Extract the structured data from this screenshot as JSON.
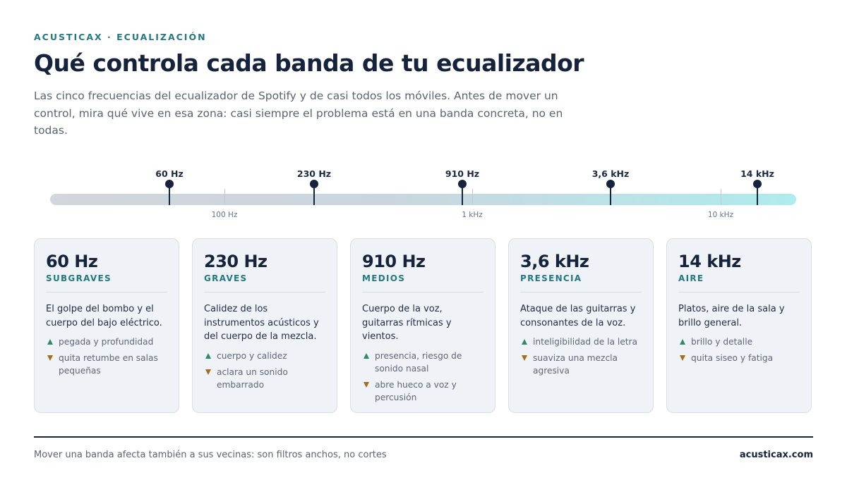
{
  "header": {
    "eyebrow": "ACUSTICAX · ECUALIZACIÓN",
    "title": "Qué controla cada banda de tu ecualizador",
    "lede": "Las cinco frecuencias del ecualizador de Spotify y de casi todos los móviles. Antes de mover un control, mira qué vive en esa zona: casi siempre el problema está en una banda concreta, no en todas."
  },
  "scale": {
    "markers": [
      "60 Hz",
      "230 Hz",
      "910 Hz",
      "3,6 kHz",
      "14 kHz"
    ],
    "decades": [
      "100 Hz",
      "1 kHz",
      "10 kHz"
    ]
  },
  "cards": [
    {
      "freq": "60 Hz",
      "band": "SUBGRAVES",
      "desc": "El golpe del bombo y el cuerpo del bajo eléctrico.",
      "up": "pegada y profundidad",
      "down": "quita retumbe en salas pequeñas"
    },
    {
      "freq": "230 Hz",
      "band": "GRAVES",
      "desc": "Calidez de los instrumentos acústicos y del cuerpo de la mezcla.",
      "up": "cuerpo y calidez",
      "down": "aclara un sonido embarrado"
    },
    {
      "freq": "910 Hz",
      "band": "MEDIOS",
      "desc": "Cuerpo de la voz, guitarras rítmicas y vientos.",
      "up": "presencia, riesgo de sonido nasal",
      "down": "abre hueco a voz y percusión"
    },
    {
      "freq": "3,6 kHz",
      "band": "PRESENCIA",
      "desc": "Ataque de las guitarras y consonantes de la voz.",
      "up": "inteligibilidad de la letra",
      "down": "suaviza una mezcla agresiva"
    },
    {
      "freq": "14 kHz",
      "band": "AIRE",
      "desc": "Platos, aire de la sala y brillo general.",
      "up": "brillo y detalle",
      "down": "quita siseo y fatiga"
    }
  ],
  "footer": {
    "note": "Mover una banda afecta también a sus vecinas: son filtros anchos, no cortes",
    "site": "acusticax.com"
  },
  "colors": {
    "accent": "#237a82",
    "ink": "#16233d",
    "boost": "#2e8a68",
    "cut": "#a86a1e",
    "card_bg": "#eff2f6"
  }
}
